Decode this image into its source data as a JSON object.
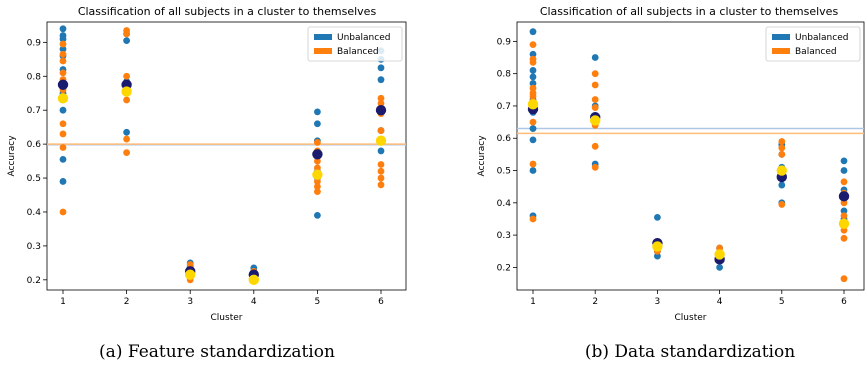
{
  "colors": {
    "unbalanced": "#1f77b4",
    "balanced": "#ff7f0e",
    "unbalanced_mean": "#1a1a6e",
    "balanced_mean": "#ffd700",
    "unbalanced_line": "#aec7e8",
    "balanced_line": "#ffbb78"
  },
  "chart_data": [
    {
      "type": "scatter",
      "title": "Classification of all subjects in a cluster to themselves",
      "caption": "(a) Feature standardization",
      "xlabel": "Cluster",
      "ylabel": "Accuracy",
      "categories": [
        "1",
        "2",
        "3",
        "4",
        "5",
        "6"
      ],
      "yticks": [
        "0.2",
        "0.3",
        "0.4",
        "0.5",
        "0.6",
        "0.7",
        "0.8",
        "0.9"
      ],
      "ylim": [
        0.17,
        0.96
      ],
      "legend_position": "upper-right",
      "series": [
        {
          "name": "Unbalanced",
          "points": [
            [
              1,
              0.94
            ],
            [
              1,
              0.92
            ],
            [
              1,
              0.91
            ],
            [
              1,
              0.88
            ],
            [
              1,
              0.86
            ],
            [
              1,
              0.82
            ],
            [
              1,
              0.78
            ],
            [
              1,
              0.75
            ],
            [
              1,
              0.7
            ],
            [
              1,
              0.555
            ],
            [
              1,
              0.49
            ],
            [
              2,
              0.925
            ],
            [
              2,
              0.905
            ],
            [
              2,
              0.785
            ],
            [
              2,
              0.77
            ],
            [
              2,
              0.635
            ],
            [
              3,
              0.25
            ],
            [
              3,
              0.24
            ],
            [
              3,
              0.22
            ],
            [
              3,
              0.21
            ],
            [
              4,
              0.235
            ],
            [
              4,
              0.225
            ],
            [
              4,
              0.215
            ],
            [
              4,
              0.205
            ],
            [
              5,
              0.695
            ],
            [
              5,
              0.66
            ],
            [
              5,
              0.61
            ],
            [
              5,
              0.52
            ],
            [
              5,
              0.5
            ],
            [
              5,
              0.39
            ],
            [
              6,
              0.875
            ],
            [
              6,
              0.85
            ],
            [
              6,
              0.825
            ],
            [
              6,
              0.79
            ],
            [
              6,
              0.7
            ],
            [
              6,
              0.64
            ],
            [
              6,
              0.58
            ]
          ],
          "mean": [
            [
              1,
              0.775
            ],
            [
              2,
              0.775
            ],
            [
              3,
              0.225
            ],
            [
              4,
              0.215
            ],
            [
              5,
              0.57
            ],
            [
              6,
              0.7
            ]
          ],
          "overall_mean": 0.598
        },
        {
          "name": "Balanced",
          "points": [
            [
              1,
              0.895
            ],
            [
              1,
              0.865
            ],
            [
              1,
              0.845
            ],
            [
              1,
              0.81
            ],
            [
              1,
              0.79
            ],
            [
              1,
              0.76
            ],
            [
              1,
              0.74
            ],
            [
              1,
              0.66
            ],
            [
              1,
              0.63
            ],
            [
              1,
              0.59
            ],
            [
              1,
              0.4
            ],
            [
              2,
              0.935
            ],
            [
              2,
              0.925
            ],
            [
              2,
              0.8
            ],
            [
              2,
              0.78
            ],
            [
              2,
              0.76
            ],
            [
              2,
              0.73
            ],
            [
              2,
              0.615
            ],
            [
              2,
              0.575
            ],
            [
              3,
              0.245
            ],
            [
              3,
              0.23
            ],
            [
              3,
              0.215
            ],
            [
              3,
              0.2
            ],
            [
              4,
              0.225
            ],
            [
              4,
              0.21
            ],
            [
              4,
              0.2
            ],
            [
              5,
              0.605
            ],
            [
              5,
              0.58
            ],
            [
              5,
              0.55
            ],
            [
              5,
              0.53
            ],
            [
              5,
              0.51
            ],
            [
              5,
              0.49
            ],
            [
              5,
              0.475
            ],
            [
              5,
              0.46
            ],
            [
              6,
              0.735
            ],
            [
              6,
              0.72
            ],
            [
              6,
              0.69
            ],
            [
              6,
              0.64
            ],
            [
              6,
              0.54
            ],
            [
              6,
              0.52
            ],
            [
              6,
              0.5
            ],
            [
              6,
              0.48
            ]
          ],
          "mean": [
            [
              1,
              0.735
            ],
            [
              2,
              0.755
            ],
            [
              3,
              0.215
            ],
            [
              4,
              0.2
            ],
            [
              5,
              0.51
            ],
            [
              6,
              0.61
            ]
          ],
          "overall_mean": 0.6
        }
      ]
    },
    {
      "type": "scatter",
      "title": "Classification of all subjects in a cluster to themselves",
      "caption": "(b) Data standardization",
      "xlabel": "Cluster",
      "ylabel": "Accuracy",
      "categories": [
        "1",
        "2",
        "3",
        "4",
        "5",
        "6"
      ],
      "yticks": [
        "0.2",
        "0.3",
        "0.4",
        "0.5",
        "0.6",
        "0.7",
        "0.8",
        "0.9"
      ],
      "ylim": [
        0.13,
        0.96
      ],
      "legend_position": "upper-right",
      "series": [
        {
          "name": "Unbalanced",
          "points": [
            [
              1,
              0.93
            ],
            [
              1,
              0.86
            ],
            [
              1,
              0.81
            ],
            [
              1,
              0.79
            ],
            [
              1,
              0.77
            ],
            [
              1,
              0.72
            ],
            [
              1,
              0.68
            ],
            [
              1,
              0.63
            ],
            [
              1,
              0.595
            ],
            [
              1,
              0.5
            ],
            [
              1,
              0.36
            ],
            [
              2,
              0.85
            ],
            [
              2,
              0.7
            ],
            [
              2,
              0.67
            ],
            [
              2,
              0.65
            ],
            [
              2,
              0.52
            ],
            [
              3,
              0.355
            ],
            [
              3,
              0.27
            ],
            [
              3,
              0.25
            ],
            [
              3,
              0.235
            ],
            [
              4,
              0.26
            ],
            [
              4,
              0.22
            ],
            [
              4,
              0.2
            ],
            [
              5,
              0.58
            ],
            [
              5,
              0.55
            ],
            [
              5,
              0.51
            ],
            [
              5,
              0.48
            ],
            [
              5,
              0.455
            ],
            [
              5,
              0.4
            ],
            [
              6,
              0.53
            ],
            [
              6,
              0.5
            ],
            [
              6,
              0.44
            ],
            [
              6,
              0.375
            ],
            [
              6,
              0.35
            ],
            [
              6,
              0.33
            ]
          ],
          "mean": [
            [
              1,
              0.69
            ],
            [
              2,
              0.665
            ],
            [
              3,
              0.275
            ],
            [
              4,
              0.225
            ],
            [
              5,
              0.48
            ],
            [
              6,
              0.42
            ]
          ],
          "overall_mean": 0.63
        },
        {
          "name": "Balanced",
          "points": [
            [
              1,
              0.89
            ],
            [
              1,
              0.845
            ],
            [
              1,
              0.835
            ],
            [
              1,
              0.755
            ],
            [
              1,
              0.74
            ],
            [
              1,
              0.73
            ],
            [
              1,
              0.715
            ],
            [
              1,
              0.695
            ],
            [
              1,
              0.65
            ],
            [
              1,
              0.52
            ],
            [
              1,
              0.35
            ],
            [
              2,
              0.8
            ],
            [
              2,
              0.765
            ],
            [
              2,
              0.72
            ],
            [
              2,
              0.695
            ],
            [
              2,
              0.64
            ],
            [
              2,
              0.575
            ],
            [
              2,
              0.51
            ],
            [
              3,
              0.28
            ],
            [
              3,
              0.265
            ],
            [
              3,
              0.25
            ],
            [
              4,
              0.26
            ],
            [
              4,
              0.24
            ],
            [
              4,
              0.22
            ],
            [
              5,
              0.59
            ],
            [
              5,
              0.57
            ],
            [
              5,
              0.55
            ],
            [
              5,
              0.5
            ],
            [
              5,
              0.48
            ],
            [
              5,
              0.395
            ],
            [
              6,
              0.465
            ],
            [
              6,
              0.43
            ],
            [
              6,
              0.4
            ],
            [
              6,
              0.36
            ],
            [
              6,
              0.33
            ],
            [
              6,
              0.315
            ],
            [
              6,
              0.29
            ],
            [
              6,
              0.165
            ]
          ],
          "mean": [
            [
              1,
              0.705
            ],
            [
              2,
              0.655
            ],
            [
              3,
              0.265
            ],
            [
              4,
              0.24
            ],
            [
              5,
              0.5
            ],
            [
              6,
              0.335
            ]
          ],
          "overall_mean": 0.615
        }
      ]
    }
  ]
}
